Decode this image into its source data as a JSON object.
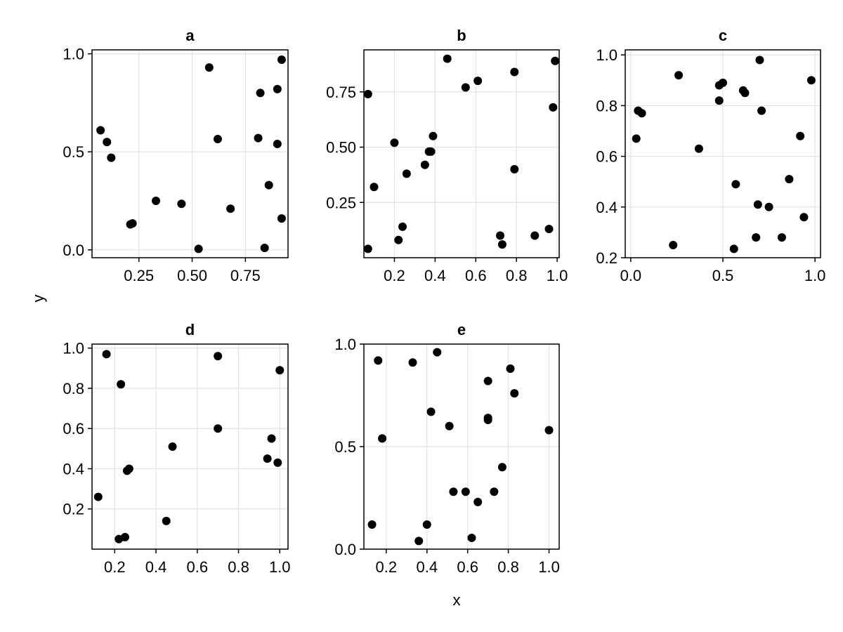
{
  "chart_data": {
    "type": "scatter",
    "xlabel": "x",
    "ylabel": "y",
    "grid": true,
    "panels": [
      {
        "title": "a",
        "xlim": [
          0.03,
          0.95
        ],
        "ylim": [
          -0.04,
          1.02
        ],
        "xticks": [
          0.25,
          0.5,
          0.75
        ],
        "xtick_labels": [
          "0.25",
          "0.50",
          "0.75"
        ],
        "yticks": [
          0.0,
          0.5,
          1.0
        ],
        "ytick_labels": [
          "0.0",
          "0.5",
          "1.0"
        ],
        "points": [
          [
            0.07,
            0.61
          ],
          [
            0.1,
            0.55
          ],
          [
            0.12,
            0.47
          ],
          [
            0.21,
            0.13
          ],
          [
            0.22,
            0.135
          ],
          [
            0.33,
            0.25
          ],
          [
            0.45,
            0.235
          ],
          [
            0.53,
            0.005
          ],
          [
            0.58,
            0.93
          ],
          [
            0.62,
            0.565
          ],
          [
            0.68,
            0.21
          ],
          [
            0.81,
            0.57
          ],
          [
            0.82,
            0.8
          ],
          [
            0.84,
            0.01
          ],
          [
            0.86,
            0.33
          ],
          [
            0.9,
            0.82
          ],
          [
            0.9,
            0.54
          ],
          [
            0.92,
            0.97
          ],
          [
            0.92,
            0.16
          ]
        ]
      },
      {
        "title": "b",
        "xlim": [
          0.05,
          1.01
        ],
        "ylim": [
          0.0,
          0.94
        ],
        "xticks": [
          0.2,
          0.4,
          0.6,
          0.8,
          1.0
        ],
        "xtick_labels": [
          "0.2",
          "0.4",
          "0.6",
          "0.8",
          "1.0"
        ],
        "yticks": [
          0.25,
          0.5,
          0.75
        ],
        "ytick_labels": [
          "0.25",
          "0.50",
          "0.75"
        ],
        "points": [
          [
            0.07,
            0.74
          ],
          [
            0.07,
            0.04
          ],
          [
            0.1,
            0.32
          ],
          [
            0.2,
            0.52
          ],
          [
            0.22,
            0.08
          ],
          [
            0.24,
            0.14
          ],
          [
            0.26,
            0.38
          ],
          [
            0.35,
            0.42
          ],
          [
            0.37,
            0.48
          ],
          [
            0.38,
            0.48
          ],
          [
            0.39,
            0.55
          ],
          [
            0.46,
            0.9
          ],
          [
            0.55,
            0.77
          ],
          [
            0.61,
            0.8
          ],
          [
            0.72,
            0.1
          ],
          [
            0.73,
            0.06
          ],
          [
            0.79,
            0.84
          ],
          [
            0.79,
            0.4
          ],
          [
            0.89,
            0.1
          ],
          [
            0.96,
            0.13
          ],
          [
            0.98,
            0.68
          ],
          [
            0.99,
            0.89
          ]
        ]
      },
      {
        "title": "c",
        "xlim": [
          -0.03,
          1.03
        ],
        "ylim": [
          0.2,
          1.02
        ],
        "xticks": [
          0.0,
          0.5,
          1.0
        ],
        "xtick_labels": [
          "0.0",
          "0.5",
          "1.0"
        ],
        "yticks": [
          0.2,
          0.4,
          0.6,
          0.8,
          1.0
        ],
        "ytick_labels": [
          "0.2",
          "0.4",
          "0.6",
          "0.8",
          "1.0"
        ],
        "points": [
          [
            0.03,
            0.67
          ],
          [
            0.04,
            0.78
          ],
          [
            0.06,
            0.77
          ],
          [
            0.23,
            0.25
          ],
          [
            0.26,
            0.92
          ],
          [
            0.37,
            0.63
          ],
          [
            0.48,
            0.82
          ],
          [
            0.48,
            0.88
          ],
          [
            0.5,
            0.89
          ],
          [
            0.56,
            0.235
          ],
          [
            0.57,
            0.49
          ],
          [
            0.61,
            0.86
          ],
          [
            0.62,
            0.85
          ],
          [
            0.68,
            0.28
          ],
          [
            0.69,
            0.41
          ],
          [
            0.7,
            0.98
          ],
          [
            0.71,
            0.78
          ],
          [
            0.75,
            0.4
          ],
          [
            0.82,
            0.28
          ],
          [
            0.86,
            0.51
          ],
          [
            0.92,
            0.68
          ],
          [
            0.94,
            0.36
          ],
          [
            0.98,
            0.9
          ]
        ]
      },
      {
        "title": "d",
        "xlim": [
          0.09,
          1.04
        ],
        "ylim": [
          0.0,
          1.02
        ],
        "xticks": [
          0.2,
          0.4,
          0.6,
          0.8,
          1.0
        ],
        "xtick_labels": [
          "0.2",
          "0.4",
          "0.6",
          "0.8",
          "1.0"
        ],
        "yticks": [
          0.2,
          0.4,
          0.6,
          0.8,
          1.0
        ],
        "ytick_labels": [
          "0.2",
          "0.4",
          "0.6",
          "0.8",
          "1.0"
        ],
        "points": [
          [
            0.12,
            0.26
          ],
          [
            0.16,
            0.97
          ],
          [
            0.22,
            0.05
          ],
          [
            0.23,
            0.82
          ],
          [
            0.25,
            0.06
          ],
          [
            0.26,
            0.39
          ],
          [
            0.27,
            0.4
          ],
          [
            0.45,
            0.14
          ],
          [
            0.48,
            0.51
          ],
          [
            0.7,
            0.96
          ],
          [
            0.7,
            0.6
          ],
          [
            0.94,
            0.45
          ],
          [
            0.96,
            0.55
          ],
          [
            0.99,
            0.43
          ],
          [
            1.0,
            0.89
          ]
        ]
      },
      {
        "title": "e",
        "xlim": [
          0.09,
          1.05
        ],
        "ylim": [
          0.0,
          1.0
        ],
        "xticks": [
          0.2,
          0.4,
          0.6,
          0.8,
          1.0
        ],
        "xtick_labels": [
          "0.2",
          "0.4",
          "0.6",
          "0.8",
          "1.0"
        ],
        "yticks": [
          0.0,
          0.5,
          1.0
        ],
        "ytick_labels": [
          "0.0",
          "0.5",
          "1.0"
        ],
        "points": [
          [
            0.13,
            0.12
          ],
          [
            0.16,
            0.92
          ],
          [
            0.18,
            0.54
          ],
          [
            0.33,
            0.91
          ],
          [
            0.36,
            0.04
          ],
          [
            0.4,
            0.12
          ],
          [
            0.42,
            0.67
          ],
          [
            0.45,
            0.96
          ],
          [
            0.51,
            0.6
          ],
          [
            0.53,
            0.28
          ],
          [
            0.59,
            0.28
          ],
          [
            0.62,
            0.055
          ],
          [
            0.65,
            0.23
          ],
          [
            0.7,
            0.82
          ],
          [
            0.7,
            0.64
          ],
          [
            0.7,
            0.63
          ],
          [
            0.73,
            0.28
          ],
          [
            0.77,
            0.4
          ],
          [
            0.81,
            0.88
          ],
          [
            0.83,
            0.76
          ],
          [
            1.0,
            0.58
          ]
        ]
      }
    ]
  }
}
